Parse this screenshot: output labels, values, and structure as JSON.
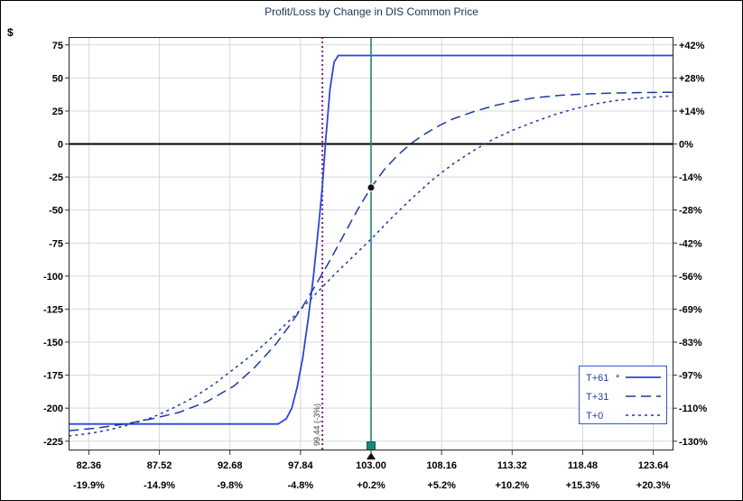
{
  "colors": {
    "line_solid": "#2b46d9",
    "line_dashed": "#1e3a9e",
    "grid": "#d8d8d8",
    "zero_line": "#000000",
    "breakeven_line": "#8a1f8a",
    "current_price_line": "#1b8578",
    "handle_fill": "#1b8578",
    "handle_border": "#0d5c52",
    "marker": "#111111",
    "title_text": "#17365d",
    "legend_border": "#3a55d0",
    "legend_text": "#1e3fae",
    "axis_text": "#000000"
  },
  "chart_data": {
    "type": "line",
    "title": "Profit/Loss by Change in DIS Common Price",
    "x_axis": {
      "range": [
        80.88,
        125.12
      ],
      "tick_prices": [
        82.36,
        87.52,
        92.68,
        97.84,
        103.0,
        108.16,
        113.32,
        118.48,
        123.64
      ],
      "tick_price_labels": [
        "82.36",
        "87.52",
        "92.68",
        "97.84",
        "103.00",
        "108.16",
        "113.32",
        "118.48",
        "123.64"
      ],
      "tick_percent_labels": [
        "-19.9%",
        "-14.9%",
        "-9.8%",
        "-4.8%",
        "+0.2%",
        "+5.2%",
        "+10.2%",
        "+15.3%",
        "+20.3%"
      ]
    },
    "y_axis_left": {
      "label": "$",
      "range": [
        81,
        -232
      ],
      "ticks": [
        75,
        50,
        25,
        0,
        -25,
        -50,
        -75,
        -100,
        -125,
        -150,
        -175,
        -200,
        -225
      ]
    },
    "y_axis_right": {
      "tick_labels": [
        "+42%",
        "+28%",
        "+14%",
        "0%",
        "-14%",
        "-28%",
        "-42%",
        "-56%",
        "-69%",
        "-83%",
        "-97%",
        "-110%",
        "-130%"
      ]
    },
    "series": [
      {
        "name": "T+61",
        "style": "solid",
        "color": "#2b46d9",
        "points": [
          [
            80.9,
            -212
          ],
          [
            96.2,
            -212
          ],
          [
            96.8,
            -208
          ],
          [
            97.2,
            -200
          ],
          [
            97.6,
            -184
          ],
          [
            98,
            -162
          ],
          [
            98.4,
            -133
          ],
          [
            98.8,
            -99
          ],
          [
            99.2,
            -58
          ],
          [
            99.44,
            -32
          ],
          [
            99.7,
            5
          ],
          [
            100,
            42
          ],
          [
            100.3,
            62
          ],
          [
            100.6,
            67
          ],
          [
            125.1,
            67
          ]
        ]
      },
      {
        "name": "T+31",
        "style": "long-dash",
        "color": "#1e3a9e",
        "points": [
          [
            80.9,
            -217
          ],
          [
            83,
            -215
          ],
          [
            85,
            -212
          ],
          [
            87,
            -208
          ],
          [
            89,
            -203
          ],
          [
            91,
            -195
          ],
          [
            93,
            -183
          ],
          [
            94.5,
            -169
          ],
          [
            96,
            -152
          ],
          [
            97,
            -138
          ],
          [
            98,
            -123
          ],
          [
            99,
            -106
          ],
          [
            100,
            -88
          ],
          [
            101,
            -69
          ],
          [
            102,
            -50
          ],
          [
            103,
            -33
          ],
          [
            104,
            -19
          ],
          [
            105,
            -8
          ],
          [
            106,
            1
          ],
          [
            107,
            8
          ],
          [
            108,
            14
          ],
          [
            109,
            19
          ],
          [
            110.5,
            24.5
          ],
          [
            112,
            29
          ],
          [
            113.5,
            32.5
          ],
          [
            115,
            35
          ],
          [
            117,
            37
          ],
          [
            119,
            38
          ],
          [
            121,
            38.6
          ],
          [
            123,
            39
          ],
          [
            125.1,
            39.2
          ]
        ]
      },
      {
        "name": "T+0",
        "style": "short-dash",
        "color": "#1e3a9e",
        "points": [
          [
            80.9,
            -221
          ],
          [
            82.5,
            -219
          ],
          [
            84,
            -216
          ],
          [
            85.5,
            -212
          ],
          [
            87,
            -207
          ],
          [
            88.5,
            -200
          ],
          [
            90,
            -192
          ],
          [
            91.5,
            -182
          ],
          [
            93,
            -170
          ],
          [
            94.5,
            -158
          ],
          [
            96,
            -144
          ],
          [
            97.5,
            -129
          ],
          [
            99,
            -113
          ],
          [
            100.5,
            -97
          ],
          [
            102,
            -82
          ],
          [
            103,
            -72
          ],
          [
            104.5,
            -56
          ],
          [
            106,
            -41
          ],
          [
            107.5,
            -27
          ],
          [
            109,
            -15
          ],
          [
            110.5,
            -5
          ],
          [
            112,
            4
          ],
          [
            113.5,
            11
          ],
          [
            115,
            17
          ],
          [
            116.5,
            22.5
          ],
          [
            118,
            27
          ],
          [
            119.5,
            30.5
          ],
          [
            121,
            33
          ],
          [
            123,
            35
          ],
          [
            125.1,
            36.5
          ]
        ]
      }
    ],
    "annotations": {
      "zero_line": 0,
      "breakeven": {
        "x": 99.44,
        "label": "99.44 (-3%)"
      },
      "current_price": {
        "x": 103.0,
        "price_label": "103.00"
      },
      "marker_point": {
        "x": 103.0,
        "y": -33,
        "on_series": "T+31"
      }
    },
    "legend": {
      "position": "bottom-right",
      "entries": [
        {
          "label": "T+61",
          "marker": "*",
          "style": "solid"
        },
        {
          "label": "T+31",
          "marker": "",
          "style": "long-dash"
        },
        {
          "label": "T+0",
          "marker": "",
          "style": "short-dash"
        }
      ]
    }
  }
}
